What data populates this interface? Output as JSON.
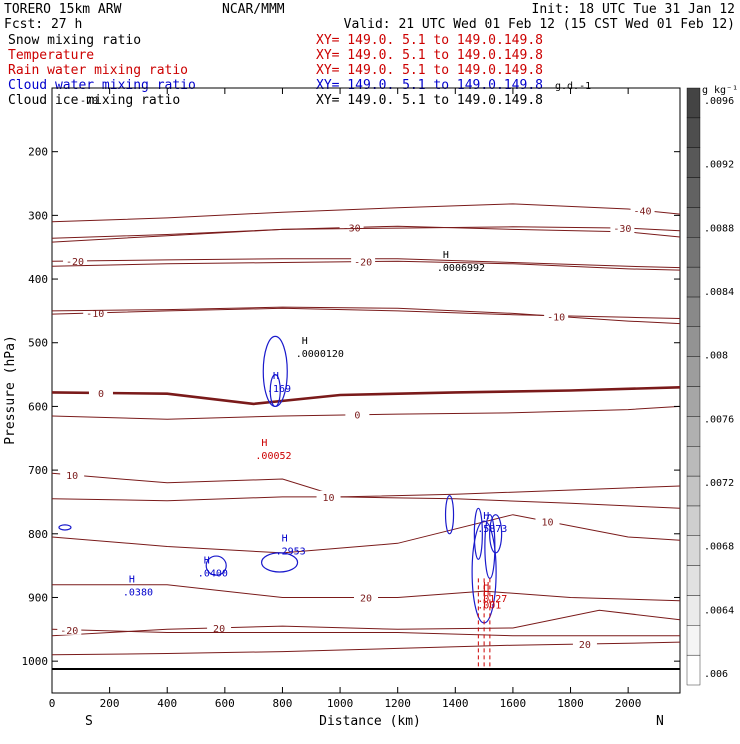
{
  "header": {
    "model": "TORERO  15km ARW",
    "forecast": "Fcst:    27 h",
    "org": "NCAR/MMM",
    "init": "Init: 18 UTC Tue 31 Jan 12",
    "valid": "Valid: 21 UTC Wed 01 Feb 12 (15 CST Wed 01 Feb 12)"
  },
  "fields": [
    {
      "name": "Snow mixing ratio",
      "range": "",
      "color": "#000000"
    },
    {
      "name": "Temperature",
      "range": "XY= 149.0.  5.1 to 149.0.149.8",
      "color": "#cc0000"
    },
    {
      "name": "Rain water mixing ratio",
      "range": "XY= 149.0.  5.1 to 149.0.149.8",
      "color": "#cc0000"
    },
    {
      "name": "Cloud water mixing ratio",
      "range": "XY= 149.0.  5.1 to 149.0.149.8",
      "color": "#0000cc"
    },
    {
      "name": "Cloud ice mixing ratio",
      "range": "XY= 149.0.  5.1 to 149.0.149.8",
      "color": "#000000"
    }
  ],
  "overlap_text": {
    "snow_range": "XY= 149.0.  5.1 to 149.0.149.8",
    "garble": "-70",
    "garble2": "g.d.-1"
  },
  "colorbar": {
    "unit": "g kg⁻¹",
    "ticks": [
      ".0096",
      ".0092",
      ".0088",
      ".0084",
      ".008",
      ".0076",
      ".0072",
      ".0068",
      ".0064",
      ".006"
    ],
    "levels": [
      0.006,
      0.0062,
      0.0064,
      0.0066,
      0.0068,
      0.007,
      0.0072,
      0.0074,
      0.0076,
      0.0078,
      0.008,
      0.0082,
      0.0084,
      0.0086,
      0.0088,
      0.009,
      0.0092,
      0.0094,
      0.0096,
      0.0098
    ],
    "min_color": "#ffffff",
    "max_color": "#444444"
  },
  "chart_data": {
    "type": "cross-section",
    "xlabel": "Distance (km)",
    "ylabel": "Pressure (hPa)",
    "x_ticks": [
      0,
      200,
      400,
      600,
      800,
      1000,
      1200,
      1400,
      1600,
      1800,
      2000
    ],
    "y_ticks": [
      200,
      300,
      400,
      500,
      600,
      700,
      800,
      900,
      1000
    ],
    "x_end_labels": {
      "left": "S",
      "right": "N"
    },
    "xlim": [
      0,
      2180
    ],
    "ylim_hPa": [
      1050,
      100
    ],
    "temperature_contours": [
      {
        "label": "-40",
        "label_x": 2050,
        "points": [
          [
            0,
            310
          ],
          [
            400,
            304
          ],
          [
            800,
            295
          ],
          [
            1200,
            288
          ],
          [
            1600,
            282
          ],
          [
            2000,
            290
          ],
          [
            2180,
            298
          ]
        ]
      },
      {
        "label": "-30",
        "label_x": 1040,
        "points": [
          [
            0,
            342
          ],
          [
            400,
            332
          ],
          [
            800,
            322
          ],
          [
            1200,
            317
          ],
          [
            1600,
            322
          ],
          [
            2000,
            326
          ],
          [
            2180,
            334
          ]
        ]
      },
      {
        "label": "-30",
        "label_x": 1980,
        "points": [
          [
            0,
            336
          ],
          [
            400,
            330
          ],
          [
            800,
            322
          ],
          [
            1200,
            320
          ],
          [
            1600,
            318
          ],
          [
            2000,
            320
          ],
          [
            2180,
            324
          ]
        ]
      },
      {
        "label": "-20",
        "label_x": 80,
        "points": [
          [
            0,
            372
          ],
          [
            400,
            370
          ],
          [
            800,
            368
          ],
          [
            1200,
            368
          ],
          [
            1600,
            374
          ],
          [
            2000,
            380
          ],
          [
            2180,
            382
          ]
        ]
      },
      {
        "label": "-20",
        "label_x": 1080,
        "points": [
          [
            0,
            380
          ],
          [
            400,
            376
          ],
          [
            800,
            374
          ],
          [
            1200,
            372
          ],
          [
            1600,
            376
          ],
          [
            2000,
            384
          ],
          [
            2180,
            386
          ]
        ]
      },
      {
        "label": "-10",
        "label_x": 150,
        "points": [
          [
            0,
            455
          ],
          [
            400,
            450
          ],
          [
            800,
            446
          ],
          [
            1200,
            450
          ],
          [
            1600,
            456
          ],
          [
            2000,
            460
          ],
          [
            2180,
            462
          ]
        ]
      },
      {
        "label": "-10",
        "label_x": 1750,
        "points": [
          [
            0,
            450
          ],
          [
            400,
            448
          ],
          [
            800,
            444
          ],
          [
            1200,
            446
          ],
          [
            1600,
            454
          ],
          [
            2000,
            466
          ],
          [
            2180,
            470
          ]
        ]
      },
      {
        "label": "0",
        "label_x": 170,
        "thick": true,
        "points": [
          [
            0,
            578
          ],
          [
            400,
            580
          ],
          [
            700,
            596
          ],
          [
            1000,
            582
          ],
          [
            1400,
            578
          ],
          [
            1800,
            575
          ],
          [
            2180,
            570
          ]
        ]
      },
      {
        "label": "0",
        "label_x": 1060,
        "points": [
          [
            0,
            615
          ],
          [
            400,
            620
          ],
          [
            800,
            615
          ],
          [
            1200,
            612
          ],
          [
            1600,
            610
          ],
          [
            2000,
            605
          ],
          [
            2180,
            600
          ]
        ]
      },
      {
        "label": "10",
        "label_x": 70,
        "points": [
          [
            0,
            705
          ],
          [
            400,
            720
          ],
          [
            800,
            714
          ],
          [
            1000,
            742
          ],
          [
            1400,
            738
          ],
          [
            1700,
            733
          ],
          [
            2180,
            725
          ]
        ]
      },
      {
        "label": "10",
        "label_x": 960,
        "points": [
          [
            0,
            745
          ],
          [
            400,
            748
          ],
          [
            800,
            742
          ],
          [
            1000,
            742
          ],
          [
            1400,
            745
          ],
          [
            1800,
            752
          ],
          [
            2180,
            760
          ]
        ]
      },
      {
        "label": "10",
        "label_x": 1720,
        "points": [
          [
            0,
            805
          ],
          [
            400,
            820
          ],
          [
            800,
            830
          ],
          [
            1200,
            815
          ],
          [
            1600,
            770
          ],
          [
            2000,
            805
          ],
          [
            2180,
            810
          ]
        ]
      },
      {
        "label": "20",
        "label_x": 1090,
        "points": [
          [
            0,
            880
          ],
          [
            400,
            880
          ],
          [
            800,
            900
          ],
          [
            1200,
            900
          ],
          [
            1500,
            890
          ],
          [
            1800,
            900
          ],
          [
            2180,
            905
          ]
        ]
      },
      {
        "label": "20",
        "label_x": 580,
        "points": [
          [
            0,
            960
          ],
          [
            400,
            950
          ],
          [
            800,
            945
          ],
          [
            1200,
            950
          ],
          [
            1600,
            948
          ],
          [
            1900,
            920
          ],
          [
            2180,
            935
          ]
        ]
      },
      {
        "label": "-20",
        "label_x": 60,
        "points": [
          [
            0,
            950
          ],
          [
            400,
            955
          ],
          [
            800,
            955
          ],
          [
            1200,
            955
          ],
          [
            1600,
            960
          ],
          [
            2000,
            960
          ],
          [
            2180,
            960
          ]
        ]
      },
      {
        "label": "20",
        "label_x": 1850,
        "points": [
          [
            0,
            990
          ],
          [
            400,
            988
          ],
          [
            800,
            985
          ],
          [
            1200,
            980
          ],
          [
            1600,
            975
          ],
          [
            2000,
            972
          ],
          [
            2180,
            970
          ]
        ]
      }
    ],
    "highs": [
      {
        "label": ".0006992",
        "x": 1350,
        "p": 370,
        "color": "#000000"
      },
      {
        "label": ".0000120",
        "x": 860,
        "p": 505,
        "color": "#000000"
      },
      {
        "label": ".169",
        "x": 760,
        "p": 560,
        "color": "#0000cc"
      },
      {
        "label": ".00052",
        "x": 720,
        "p": 665,
        "color": "#cc0000"
      },
      {
        "label": ".2953",
        "x": 790,
        "p": 815,
        "color": "#0000cc"
      },
      {
        "label": ".0400",
        "x": 520,
        "p": 850,
        "color": "#0000cc"
      },
      {
        "label": ".0380",
        "x": 260,
        "p": 880,
        "color": "#0000cc"
      },
      {
        "label": ".5873",
        "x": 1490,
        "p": 780,
        "color": "#0000cc"
      },
      {
        "label": ".0127",
        "x": 1490,
        "p": 890,
        "color": "#cc0000"
      },
      {
        "label": ".001",
        "x": 1490,
        "p": 900,
        "color": "#cc0000"
      }
    ]
  }
}
